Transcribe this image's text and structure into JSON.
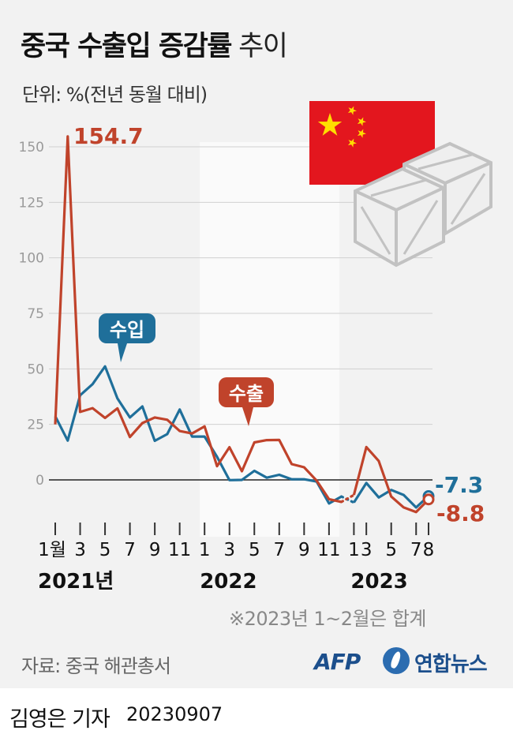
{
  "title": {
    "main": "중국 수출입 증감률",
    "sub": "추이"
  },
  "unit_label": "단위: %(전년 동월 대비)",
  "note": "※2023년 1~2월은 합계",
  "source": "자료: 중국 해관총서",
  "logos": {
    "afp": "AFP",
    "yonhap": "연합뉴스",
    "yonhap_icon": "yonhap-emblem-icon"
  },
  "reporter": {
    "name": "김영은 기자",
    "date": "20230907"
  },
  "illustration": {
    "flag": "china-flag-icon",
    "boxes": "cargo-crate-icon"
  },
  "colors": {
    "export": "#c0432b",
    "import": "#1f6f9a",
    "zero_line": "#222222",
    "grid": "#d0d0d0",
    "bg": "#f2f2f2",
    "band": "#fafafa"
  },
  "chart_data": {
    "type": "line",
    "title": "중국 수출입 증감률",
    "ylabel": "단위: %(전년 동월 대비)",
    "ylim": [
      -12.5,
      162.5
    ],
    "yticks": [
      0,
      25,
      50,
      75,
      100,
      125,
      150
    ],
    "xticks": [
      "1월",
      "3",
      "5",
      "7",
      "9",
      "11",
      "1",
      "3",
      "5",
      "7",
      "9",
      "11",
      "1",
      "3",
      "5",
      "7",
      "8"
    ],
    "year_labels": [
      "2021년",
      "2022",
      "2023"
    ],
    "grid": true,
    "x": [
      "2021-01",
      "2021-02",
      "2021-03",
      "2021-04",
      "2021-05",
      "2021-06",
      "2021-07",
      "2021-08",
      "2021-09",
      "2021-10",
      "2021-11",
      "2021-12",
      "2022-01",
      "2022-02",
      "2022-03",
      "2022-04",
      "2022-05",
      "2022-06",
      "2022-07",
      "2022-08",
      "2022-09",
      "2022-10",
      "2022-11",
      "2022-12",
      "2023-01",
      "2023-02",
      "2023-03",
      "2023-04",
      "2023-05",
      "2023-06",
      "2023-07",
      "2023-08"
    ],
    "series": [
      {
        "name": "수출",
        "values": [
          25,
          154.7,
          30.6,
          32.3,
          27.9,
          32.2,
          19.3,
          25.6,
          28.1,
          27.1,
          22,
          20.9,
          24.1,
          6.2,
          14.7,
          3.9,
          16.9,
          17.9,
          18,
          7.1,
          5.7,
          -0.3,
          -8.7,
          -9.9,
          -6.8,
          -6.8,
          14.8,
          8.5,
          -7.5,
          -12.4,
          -14.5,
          -8.8
        ]
      },
      {
        "name": "수입",
        "values": [
          28.7,
          17.7,
          38.1,
          43.1,
          51.1,
          36.7,
          28.1,
          33.1,
          17.6,
          20.6,
          31.7,
          19.5,
          19.5,
          10.4,
          -0.1,
          0,
          4.1,
          1,
          2.3,
          0.3,
          0.3,
          -0.7,
          -10.6,
          -7.5,
          -10.2,
          -10.2,
          -1.4,
          -7.9,
          -4.5,
          -6.8,
          -12.4,
          -7.3
        ]
      }
    ],
    "series_labels": {
      "export": "수출",
      "import": "수입"
    },
    "annotations": {
      "peak": "154.7",
      "last_export": "-8.8",
      "last_import": "-7.3"
    }
  }
}
